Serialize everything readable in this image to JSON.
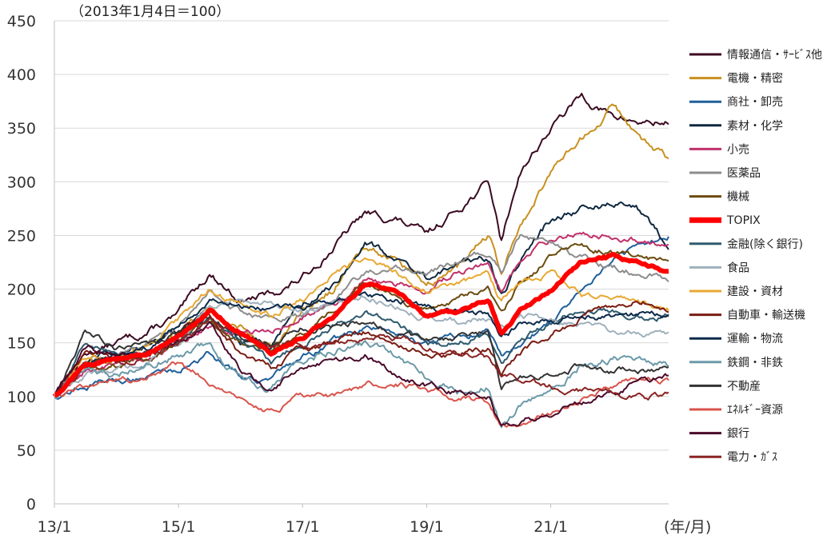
{
  "chart_data": {
    "type": "line",
    "title": "",
    "base_note": "（2013年1月4日＝100）",
    "xunit": "(年/月)",
    "xlabel": "",
    "ylabel": "",
    "ylim": [
      0,
      450
    ],
    "yticks": [
      0,
      50,
      100,
      150,
      200,
      250,
      300,
      350,
      400,
      450
    ],
    "xlim": [
      2013.0,
      2022.9
    ],
    "xticks": [
      {
        "x": 2013.0,
        "label": "13/1"
      },
      {
        "x": 2015.0,
        "label": "15/1"
      },
      {
        "x": 2017.0,
        "label": "17/1"
      },
      {
        "x": 2019.0,
        "label": "19/1"
      },
      {
        "x": 2021.0,
        "label": "21/1"
      }
    ],
    "grid": true,
    "legend_position": "right",
    "series": [
      {
        "name": "情報通信・ｻｰﾋﾞｽ他",
        "color": "#3b0a22",
        "width": 2,
        "vol": 5,
        "x": [
          2013.0,
          2013.5,
          2014.0,
          2014.5,
          2015.0,
          2015.5,
          2016.0,
          2016.5,
          2017.0,
          2017.5,
          2018.0,
          2018.5,
          2019.0,
          2019.5,
          2020.0,
          2020.2,
          2020.5,
          2021.0,
          2021.5,
          2022.0,
          2022.5,
          2022.9
        ],
        "y": [
          100,
          140,
          150,
          160,
          175,
          215,
          190,
          195,
          210,
          240,
          270,
          265,
          250,
          275,
          300,
          245,
          310,
          350,
          380,
          360,
          355,
          355
        ]
      },
      {
        "name": "電機・精密",
        "color": "#c8901f",
        "width": 2,
        "vol": 5,
        "x": [
          2013.0,
          2013.5,
          2014.0,
          2014.5,
          2015.0,
          2015.5,
          2016.0,
          2016.5,
          2017.0,
          2017.5,
          2018.0,
          2018.5,
          2019.0,
          2019.5,
          2020.0,
          2020.2,
          2020.5,
          2021.0,
          2021.5,
          2022.0,
          2022.5,
          2022.9
        ],
        "y": [
          100,
          130,
          135,
          140,
          160,
          185,
          165,
          150,
          175,
          200,
          240,
          230,
          205,
          220,
          250,
          215,
          260,
          310,
          340,
          370,
          340,
          320
        ]
      },
      {
        "name": "商社・卸売",
        "color": "#1f5f9a",
        "width": 2,
        "vol": 4,
        "x": [
          2013.0,
          2013.5,
          2014.0,
          2014.5,
          2015.0,
          2015.5,
          2016.0,
          2016.5,
          2017.0,
          2017.5,
          2018.0,
          2018.5,
          2019.0,
          2019.5,
          2020.0,
          2020.2,
          2020.5,
          2021.0,
          2021.5,
          2022.0,
          2022.5,
          2022.9
        ],
        "y": [
          100,
          110,
          115,
          120,
          125,
          140,
          120,
          115,
          135,
          150,
          165,
          160,
          150,
          155,
          160,
          140,
          150,
          170,
          200,
          230,
          240,
          250
        ]
      },
      {
        "name": "素材・化学",
        "color": "#102840",
        "width": 2,
        "vol": 5,
        "x": [
          2013.0,
          2013.5,
          2014.0,
          2014.5,
          2015.0,
          2015.5,
          2016.0,
          2016.5,
          2017.0,
          2017.5,
          2018.0,
          2018.5,
          2019.0,
          2019.5,
          2020.0,
          2020.2,
          2020.5,
          2021.0,
          2021.5,
          2022.0,
          2022.5,
          2022.9
        ],
        "y": [
          100,
          130,
          140,
          145,
          160,
          180,
          155,
          150,
          185,
          205,
          245,
          230,
          210,
          220,
          230,
          195,
          225,
          265,
          275,
          280,
          270,
          240
        ]
      },
      {
        "name": "小売",
        "color": "#c0306a",
        "width": 2,
        "vol": 4,
        "x": [
          2013.0,
          2013.5,
          2014.0,
          2014.5,
          2015.0,
          2015.5,
          2016.0,
          2016.5,
          2017.0,
          2017.5,
          2018.0,
          2018.5,
          2019.0,
          2019.5,
          2020.0,
          2020.2,
          2020.5,
          2021.0,
          2021.5,
          2022.0,
          2022.5,
          2022.9
        ],
        "y": [
          100,
          125,
          130,
          135,
          150,
          165,
          160,
          160,
          175,
          185,
          210,
          205,
          200,
          215,
          225,
          200,
          230,
          245,
          255,
          250,
          245,
          240
        ]
      },
      {
        "name": "医薬品",
        "color": "#8c8c8c",
        "width": 2,
        "vol": 4,
        "x": [
          2013.0,
          2013.5,
          2014.0,
          2014.5,
          2015.0,
          2015.5,
          2016.0,
          2016.5,
          2017.0,
          2017.5,
          2018.0,
          2018.5,
          2019.0,
          2019.5,
          2020.0,
          2020.2,
          2020.5,
          2021.0,
          2021.5,
          2022.0,
          2022.5,
          2022.9
        ],
        "y": [
          100,
          130,
          140,
          150,
          165,
          200,
          180,
          170,
          175,
          190,
          215,
          220,
          215,
          225,
          235,
          215,
          250,
          240,
          230,
          220,
          215,
          210
        ]
      },
      {
        "name": "機械",
        "color": "#6b4a0e",
        "width": 2,
        "vol": 4,
        "x": [
          2013.0,
          2013.5,
          2014.0,
          2014.5,
          2015.0,
          2015.5,
          2016.0,
          2016.5,
          2017.0,
          2017.5,
          2018.0,
          2018.5,
          2019.0,
          2019.5,
          2020.0,
          2020.2,
          2020.5,
          2021.0,
          2021.5,
          2022.0,
          2022.5,
          2022.9
        ],
        "y": [
          100,
          125,
          130,
          135,
          150,
          170,
          150,
          140,
          160,
          180,
          205,
          195,
          180,
          190,
          200,
          175,
          205,
          230,
          240,
          235,
          230,
          225
        ]
      },
      {
        "name": "TOPIX",
        "color": "#ff0000",
        "width": 6,
        "vol": 2,
        "x": [
          2013.0,
          2013.5,
          2014.0,
          2014.5,
          2015.0,
          2015.5,
          2016.0,
          2016.5,
          2017.0,
          2017.5,
          2018.0,
          2018.5,
          2019.0,
          2019.5,
          2020.0,
          2020.2,
          2020.5,
          2021.0,
          2021.5,
          2022.0,
          2022.5,
          2022.9
        ],
        "y": [
          100,
          130,
          135,
          140,
          155,
          180,
          160,
          140,
          155,
          175,
          205,
          200,
          175,
          180,
          190,
          160,
          180,
          200,
          225,
          230,
          225,
          215
        ]
      },
      {
        "name": "金融(除く銀行)",
        "color": "#2e5a6e",
        "width": 2,
        "vol": 4,
        "x": [
          2013.0,
          2013.5,
          2014.0,
          2014.5,
          2015.0,
          2015.5,
          2016.0,
          2016.5,
          2017.0,
          2017.5,
          2018.0,
          2018.5,
          2019.0,
          2019.5,
          2020.0,
          2020.2,
          2020.5,
          2021.0,
          2021.5,
          2022.0,
          2022.5,
          2022.9
        ],
        "y": [
          100,
          150,
          140,
          140,
          150,
          175,
          150,
          130,
          150,
          165,
          180,
          170,
          150,
          150,
          160,
          135,
          150,
          170,
          180,
          180,
          175,
          175
        ]
      },
      {
        "name": "食品",
        "color": "#9fb1bc",
        "width": 2,
        "vol": 4,
        "x": [
          2013.0,
          2013.5,
          2014.0,
          2014.5,
          2015.0,
          2015.5,
          2016.0,
          2016.5,
          2017.0,
          2017.5,
          2018.0,
          2018.5,
          2019.0,
          2019.5,
          2020.0,
          2020.2,
          2020.5,
          2021.0,
          2021.5,
          2022.0,
          2022.5,
          2022.9
        ],
        "y": [
          100,
          120,
          125,
          130,
          150,
          185,
          190,
          185,
          180,
          185,
          195,
          185,
          175,
          170,
          175,
          165,
          175,
          170,
          165,
          160,
          160,
          160
        ]
      },
      {
        "name": "建設・資材",
        "color": "#e8a832",
        "width": 2,
        "vol": 4,
        "x": [
          2013.0,
          2013.5,
          2014.0,
          2014.5,
          2015.0,
          2015.5,
          2016.0,
          2016.5,
          2017.0,
          2017.5,
          2018.0,
          2018.5,
          2019.0,
          2019.5,
          2020.0,
          2020.2,
          2020.5,
          2021.0,
          2021.5,
          2022.0,
          2022.5,
          2022.9
        ],
        "y": [
          100,
          135,
          140,
          145,
          170,
          200,
          185,
          175,
          190,
          215,
          230,
          215,
          200,
          205,
          215,
          190,
          205,
          215,
          195,
          190,
          185,
          180
        ]
      },
      {
        "name": "自動車・輸送機",
        "color": "#7a1c12",
        "width": 2,
        "vol": 4,
        "x": [
          2013.0,
          2013.5,
          2014.0,
          2014.5,
          2015.0,
          2015.5,
          2016.0,
          2016.5,
          2017.0,
          2017.5,
          2018.0,
          2018.5,
          2019.0,
          2019.5,
          2020.0,
          2020.2,
          2020.5,
          2021.0,
          2021.5,
          2022.0,
          2022.5,
          2022.9
        ],
        "y": [
          100,
          140,
          135,
          140,
          160,
          175,
          140,
          125,
          145,
          150,
          160,
          150,
          140,
          140,
          145,
          120,
          140,
          160,
          175,
          185,
          190,
          180
        ]
      },
      {
        "name": "運輸・物流",
        "color": "#0c2a4a",
        "width": 2,
        "vol": 4,
        "x": [
          2013.0,
          2013.5,
          2014.0,
          2014.5,
          2015.0,
          2015.5,
          2016.0,
          2016.5,
          2017.0,
          2017.5,
          2018.0,
          2018.5,
          2019.0,
          2019.5,
          2020.0,
          2020.2,
          2020.5,
          2021.0,
          2021.5,
          2022.0,
          2022.5,
          2022.9
        ],
        "y": [
          100,
          130,
          140,
          145,
          165,
          190,
          185,
          180,
          185,
          190,
          200,
          190,
          185,
          180,
          180,
          155,
          165,
          170,
          175,
          175,
          175,
          175
        ]
      },
      {
        "name": "鉄鋼・非鉄",
        "color": "#6c9aa8",
        "width": 2,
        "vol": 5,
        "x": [
          2013.0,
          2013.5,
          2014.0,
          2014.5,
          2015.0,
          2015.5,
          2016.0,
          2016.5,
          2017.0,
          2017.5,
          2018.0,
          2018.5,
          2019.0,
          2019.5,
          2020.0,
          2020.2,
          2020.5,
          2021.0,
          2021.5,
          2022.0,
          2022.5,
          2022.9
        ],
        "y": [
          100,
          125,
          120,
          130,
          140,
          150,
          115,
          110,
          135,
          145,
          150,
          135,
          115,
          105,
          110,
          70,
          90,
          110,
          130,
          135,
          130,
          130
        ]
      },
      {
        "name": "不動産",
        "color": "#333333",
        "width": 2,
        "vol": 4,
        "x": [
          2013.0,
          2013.5,
          2014.0,
          2014.5,
          2015.0,
          2015.5,
          2016.0,
          2016.5,
          2017.0,
          2017.5,
          2018.0,
          2018.5,
          2019.0,
          2019.5,
          2020.0,
          2020.2,
          2020.5,
          2021.0,
          2021.5,
          2022.0,
          2022.5,
          2022.9
        ],
        "y": [
          100,
          165,
          145,
          150,
          160,
          175,
          155,
          150,
          165,
          165,
          170,
          160,
          150,
          155,
          160,
          110,
          120,
          120,
          130,
          125,
          125,
          125
        ]
      },
      {
        "name": "ｴﾈﾙｷﾞｰ資源",
        "color": "#d9534a",
        "width": 2,
        "vol": 4,
        "x": [
          2013.0,
          2013.5,
          2014.0,
          2014.5,
          2015.0,
          2015.5,
          2016.0,
          2016.5,
          2017.0,
          2017.5,
          2018.0,
          2018.5,
          2019.0,
          2019.5,
          2020.0,
          2020.2,
          2020.5,
          2021.0,
          2021.5,
          2022.0,
          2022.5,
          2022.9
        ],
        "y": [
          100,
          110,
          115,
          120,
          130,
          115,
          95,
          85,
          100,
          100,
          110,
          115,
          105,
          100,
          95,
          70,
          75,
          85,
          100,
          110,
          115,
          115
        ]
      },
      {
        "name": "銀行",
        "color": "#4a0a2a",
        "width": 2,
        "vol": 4,
        "x": [
          2013.0,
          2013.5,
          2014.0,
          2014.5,
          2015.0,
          2015.5,
          2016.0,
          2016.5,
          2017.0,
          2017.5,
          2018.0,
          2018.5,
          2019.0,
          2019.5,
          2020.0,
          2020.2,
          2020.5,
          2021.0,
          2021.5,
          2022.0,
          2022.5,
          2022.9
        ],
        "y": [
          100,
          145,
          140,
          140,
          150,
          165,
          125,
          105,
          130,
          130,
          140,
          120,
          110,
          105,
          100,
          70,
          75,
          85,
          95,
          105,
          115,
          120
        ]
      },
      {
        "name": "電力・ｶﾞｽ",
        "color": "#8b2323",
        "width": 2,
        "vol": 4,
        "x": [
          2013.0,
          2013.5,
          2014.0,
          2014.5,
          2015.0,
          2015.5,
          2016.0,
          2016.5,
          2017.0,
          2017.5,
          2018.0,
          2018.5,
          2019.0,
          2019.5,
          2020.0,
          2020.2,
          2020.5,
          2021.0,
          2021.5,
          2022.0,
          2022.5,
          2022.9
        ],
        "y": [
          100,
          125,
          130,
          140,
          150,
          170,
          160,
          150,
          150,
          150,
          155,
          155,
          145,
          140,
          135,
          120,
          115,
          110,
          105,
          105,
          100,
          100
        ]
      }
    ]
  }
}
